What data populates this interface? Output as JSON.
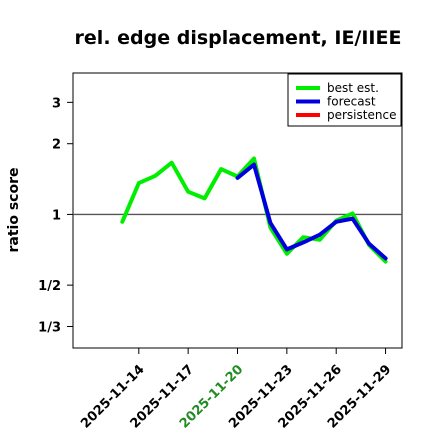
{
  "chart_data": {
    "type": "line",
    "title": "rel. edge displacement, IE/IIEE",
    "ylabel": "ratio score",
    "xlabel": "",
    "y_scale": "log",
    "ylim": [
      0.27,
      4.0
    ],
    "yticks": [
      {
        "value": 3,
        "label": "3"
      },
      {
        "value": 2,
        "label": "2"
      },
      {
        "value": 1,
        "label": "1"
      },
      {
        "value": 0.5,
        "label": "1/2"
      },
      {
        "value": 0.3333,
        "label": "1/3"
      }
    ],
    "reference_line": 1,
    "x_range": [
      "2025-11-10",
      "2025-11-30"
    ],
    "xticks": [
      {
        "date": "2025-11-14",
        "label": "2025-11-14",
        "color": "#000000"
      },
      {
        "date": "2025-11-17",
        "label": "2025-11-17",
        "color": "#000000"
      },
      {
        "date": "2025-11-20",
        "label": "2025-11-20",
        "color": "#228b22"
      },
      {
        "date": "2025-11-23",
        "label": "2025-11-23",
        "color": "#000000"
      },
      {
        "date": "2025-11-26",
        "label": "2025-11-26",
        "color": "#000000"
      },
      {
        "date": "2025-11-29",
        "label": "2025-11-29",
        "color": "#000000"
      }
    ],
    "legend_position": "top-right",
    "series": [
      {
        "name": "best est.",
        "color": "#00ee00",
        "points": [
          {
            "x": "2025-11-13",
            "y": 0.93
          },
          {
            "x": "2025-11-14",
            "y": 1.36
          },
          {
            "x": "2025-11-15",
            "y": 1.46
          },
          {
            "x": "2025-11-16",
            "y": 1.66
          },
          {
            "x": "2025-11-17",
            "y": 1.25
          },
          {
            "x": "2025-11-18",
            "y": 1.17
          },
          {
            "x": "2025-11-19",
            "y": 1.56
          },
          {
            "x": "2025-11-20",
            "y": 1.45
          },
          {
            "x": "2025-11-21",
            "y": 1.73
          },
          {
            "x": "2025-11-22",
            "y": 0.88
          },
          {
            "x": "2025-11-23",
            "y": 0.68
          },
          {
            "x": "2025-11-24",
            "y": 0.8
          },
          {
            "x": "2025-11-25",
            "y": 0.78
          },
          {
            "x": "2025-11-26",
            "y": 0.94
          },
          {
            "x": "2025-11-27",
            "y": 1.01
          },
          {
            "x": "2025-11-28",
            "y": 0.74
          },
          {
            "x": "2025-11-29",
            "y": 0.63
          }
        ]
      },
      {
        "name": "forecast",
        "color": "#0000dd",
        "points": [
          {
            "x": "2025-11-20",
            "y": 1.43
          },
          {
            "x": "2025-11-21",
            "y": 1.63
          },
          {
            "x": "2025-11-22",
            "y": 0.92
          },
          {
            "x": "2025-11-23",
            "y": 0.71
          },
          {
            "x": "2025-11-24",
            "y": 0.76
          },
          {
            "x": "2025-11-25",
            "y": 0.82
          },
          {
            "x": "2025-11-26",
            "y": 0.93
          },
          {
            "x": "2025-11-27",
            "y": 0.96
          },
          {
            "x": "2025-11-28",
            "y": 0.75
          },
          {
            "x": "2025-11-29",
            "y": 0.65
          }
        ]
      },
      {
        "name": "persistence",
        "color": "#ff0000",
        "points": []
      }
    ]
  }
}
